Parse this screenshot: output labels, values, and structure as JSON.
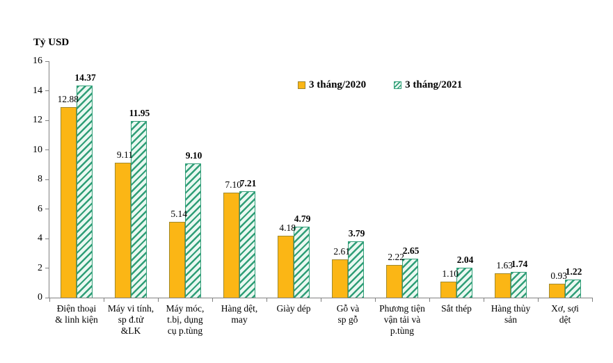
{
  "unit_label": "Tỷ USD",
  "legend": {
    "items": [
      {
        "label": "3 tháng/2020",
        "swatch": "solid-orange-square"
      },
      {
        "label": "3 tháng/2021",
        "swatch": "green-diagonal-hatch-square"
      }
    ]
  },
  "colors": {
    "series_2020_fill": "#FBB615",
    "series_2021_hatch": "#2F9E77",
    "series_2021_bg": "#EAF8F1",
    "axis": "#808080",
    "text": "#000000"
  },
  "chart_data": {
    "type": "bar",
    "title": "",
    "unit_label": "Tỷ USD",
    "ylabel": "Tỷ USD",
    "xlabel": "",
    "ylim": [
      0,
      16
    ],
    "ytick_step": 2,
    "grid": false,
    "legend_position": "top-inside",
    "value_labels_shown": true,
    "categories": [
      "Điện thoại & linh kiện",
      "Máy vi tính, sp đ.tử &LK",
      "Máy móc, t.bị, dụng cụ p.tùng",
      "Hàng dệt, may",
      "Giày dép",
      "Gỗ và sp gỗ",
      "Phương tiện vận tải và p.tùng",
      "Sắt thép",
      "Hàng thủy sản",
      "Xơ, sợi dệt"
    ],
    "category_label_lines": [
      [
        "Điện thoại",
        "& linh kiện"
      ],
      [
        "Máy vi tính,",
        "sp đ.tử",
        "&LK"
      ],
      [
        "Máy móc,",
        "t.bị, dụng",
        "cụ p.tùng"
      ],
      [
        "Hàng dệt,",
        "may"
      ],
      [
        "Giày dép"
      ],
      [
        "Gỗ và",
        "sp gỗ"
      ],
      [
        "Phương tiện",
        "vận tải và",
        "p.tùng"
      ],
      [
        "Sắt thép"
      ],
      [
        "Hàng thủy",
        "sản"
      ],
      [
        "Xơ, sợi",
        "dệt"
      ]
    ],
    "series": [
      {
        "name": "3 tháng/2020",
        "values": [
          12.88,
          9.11,
          5.14,
          7.1,
          4.18,
          2.61,
          2.22,
          1.1,
          1.63,
          0.93
        ]
      },
      {
        "name": "3 tháng/2021",
        "values": [
          14.37,
          11.95,
          9.1,
          7.21,
          4.79,
          3.79,
          2.65,
          2.04,
          1.74,
          1.22
        ]
      }
    ]
  }
}
